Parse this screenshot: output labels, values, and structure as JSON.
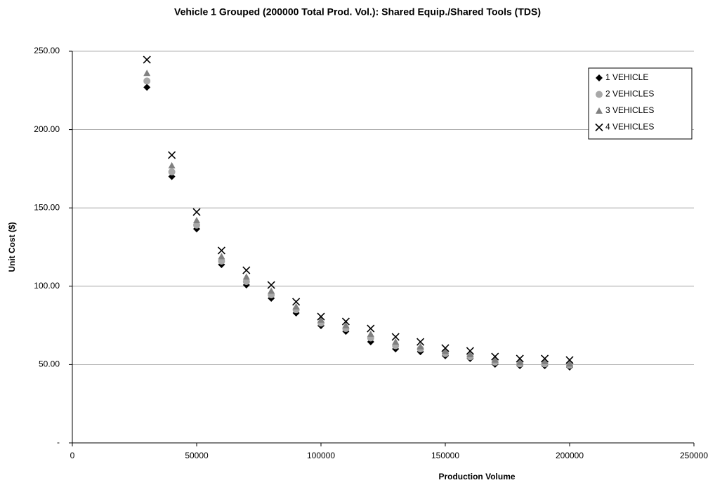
{
  "chart_data": {
    "type": "scatter",
    "title": "Vehicle 1 Grouped (200000 Total Prod. Vol.): Shared Equip./Shared Tools (TDS)",
    "x_label": "Production Volume",
    "y_label": "Unit Cost ($)",
    "x": [
      30000,
      40000,
      50000,
      60000,
      70000,
      80000,
      90000,
      100000,
      110000,
      120000,
      130000,
      140000,
      150000,
      160000,
      170000,
      180000,
      190000,
      200000
    ],
    "series": [
      {
        "name": "1 VEHICLE",
        "color": "#000000",
        "marker": "diamond",
        "values": [
          227,
          170,
          136.6,
          113.8,
          100.8,
          92.3,
          82.9,
          74.8,
          71.2,
          64.5,
          60,
          58.2,
          55.6,
          53.8,
          50.2,
          49.3,
          49.3,
          48.4
        ]
      },
      {
        "name": "2 VEHICLES",
        "color": "#a8a8a8",
        "marker": "circle",
        "values": [
          231,
          173,
          139,
          116,
          103,
          94.5,
          85,
          76.5,
          73,
          67,
          62,
          60,
          57,
          55,
          51.5,
          50.5,
          50.5,
          49.5
        ]
      },
      {
        "name": "3 VEHICLES",
        "color": "#808080",
        "marker": "triangle",
        "values": [
          236,
          177,
          142,
          119,
          106,
          97,
          87,
          78.5,
          75,
          69.5,
          64.5,
          61.5,
          58.5,
          56.5,
          53,
          51.5,
          52,
          50.5
        ]
      },
      {
        "name": "4 VEHICLES",
        "color": "#000000",
        "marker": "x",
        "values": [
          244.6,
          183.7,
          147.4,
          122.8,
          110.2,
          100.8,
          90.1,
          80.6,
          77.5,
          73,
          67.7,
          64.5,
          60.5,
          58.7,
          55.1,
          53.8,
          53.8,
          52.9
        ]
      }
    ],
    "xlim": [
      0,
      250000
    ],
    "xticks": [
      0,
      50000,
      100000,
      150000,
      200000,
      250000
    ],
    "ylim": [
      0,
      250
    ],
    "yticks": [
      {
        "value": 0,
        "label": "-"
      },
      {
        "value": 50,
        "label": "50.00"
      },
      {
        "value": 100,
        "label": "100.00"
      },
      {
        "value": 150,
        "label": "150.00"
      },
      {
        "value": 200,
        "label": "200.00"
      },
      {
        "value": 250,
        "label": "250.00"
      }
    ],
    "grid": true,
    "legend": "top-right"
  }
}
